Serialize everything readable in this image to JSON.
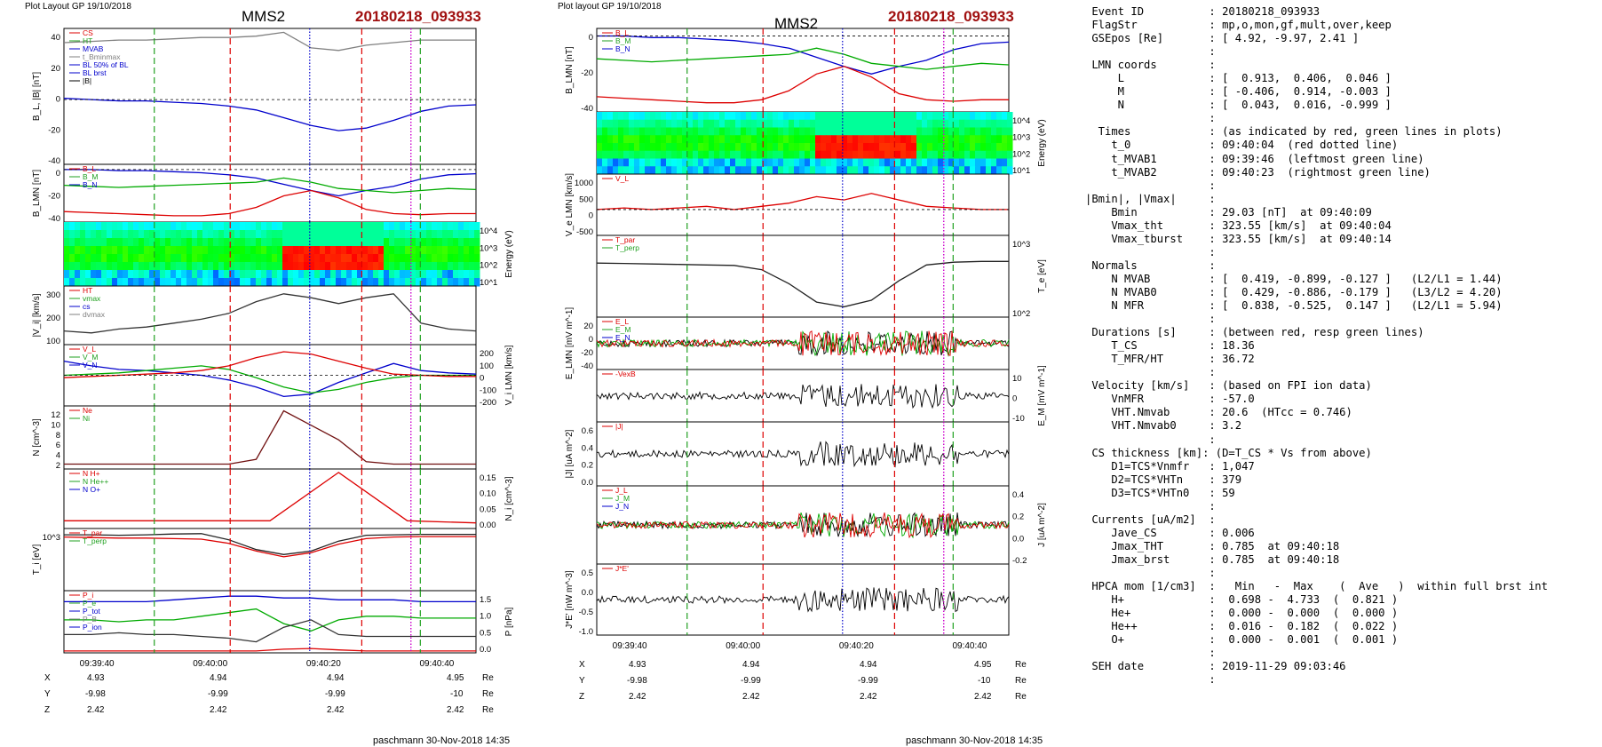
{
  "header": {
    "left_caption": "Plot Layout GP 19/10/2018",
    "mid_caption": "Plot layout GP 19/10/2018",
    "spacecraft": "MMS2",
    "event": "20180218_093933"
  },
  "footer": {
    "left_credit": "paschmann 30-Nov-2018 14:35",
    "mid_credit": "paschmann 30-Nov-2018 14:35"
  },
  "time_axis": {
    "ticks": [
      "09:39:40",
      "09:40:00",
      "09:40:20",
      "09:40:40"
    ],
    "position_rows": [
      {
        "label": "X",
        "values": [
          "4.93",
          "4.94",
          "4.94",
          "4.95"
        ],
        "unit": "Re"
      },
      {
        "label": "Y",
        "values": [
          "-9.98",
          "-9.99",
          "-9.99",
          "-10"
        ],
        "unit": "Re"
      },
      {
        "label": "Z",
        "values": [
          "2.42",
          "2.42",
          "2.42",
          "2.42"
        ],
        "unit": "Re"
      }
    ]
  },
  "event_lines": {
    "t_seconds_from": "09:39:30",
    "red_dashed": [
      23.0,
      41.2
    ],
    "green_dashed": [
      12.5,
      49.3
    ],
    "red_dotted": 34.0,
    "blue_dotted": 34.0,
    "magenta_dotted": 48.0
  },
  "chart_data": [
    {
      "panel": "left",
      "type": "line",
      "ylabel": "B_L, |B| [nT]",
      "yticks": [
        "40",
        "20",
        "0",
        "-20",
        "-40"
      ],
      "ylim": [
        -50,
        55
      ],
      "legend": [
        "CS",
        "HT",
        "MVAB",
        "t_Bminmax",
        "BL 50% of BL",
        "BL brst",
        "|B|"
      ],
      "series": [
        {
          "name": "|B|",
          "color": "#808080",
          "values": [
            44,
            45,
            46,
            46,
            47,
            48,
            48,
            49,
            52,
            40,
            38,
            42,
            44,
            46,
            46,
            46
          ]
        },
        {
          "name": "BL",
          "color": "#0000cc",
          "values": [
            1,
            0,
            -1,
            -1,
            -2,
            -3,
            -5,
            -8,
            -14,
            -20,
            -24,
            -22,
            -16,
            -9,
            -5,
            -4
          ]
        }
      ]
    },
    {
      "panel": "left",
      "type": "line",
      "ylabel": "B_LMN [nT]",
      "yticks": [
        "0",
        "-20",
        "-40"
      ],
      "ylim": [
        -50,
        5
      ],
      "legend": [
        "B_L",
        "B_M",
        "B_N"
      ],
      "series": [
        {
          "name": "B_L",
          "color": "#0000cc",
          "values": [
            0,
            0,
            -1,
            -1,
            -2,
            -3,
            -5,
            -8,
            -14,
            -20,
            -25,
            -20,
            -16,
            -9,
            -5,
            -4
          ]
        },
        {
          "name": "B_M",
          "color": "#00aa00",
          "values": [
            -15,
            -16,
            -17,
            -16,
            -15,
            -14,
            -13,
            -12,
            -8,
            -12,
            -18,
            -20,
            -22,
            -20,
            -18,
            -19
          ]
        },
        {
          "name": "B_N",
          "color": "#dd0000",
          "values": [
            -40,
            -41,
            -42,
            -43,
            -44,
            -44,
            -42,
            -36,
            -25,
            -20,
            -27,
            -38,
            -42,
            -43,
            -42,
            -42
          ]
        }
      ]
    },
    {
      "panel": "left",
      "type": "heatmap",
      "ylabel": "Energy (eV)",
      "yticks": [
        "10^4",
        "10^3",
        "10^2",
        "10^1"
      ]
    },
    {
      "panel": "left",
      "type": "line",
      "ylabel": "|V_i| [km/s]",
      "yticks": [
        "300",
        "200",
        "100"
      ],
      "ylim": [
        40,
        340
      ],
      "legend": [
        "HT",
        "vmax",
        "cs",
        "dvmax"
      ],
      "series": [
        {
          "name": "|V_i|",
          "color": "#333333",
          "values": [
            110,
            100,
            120,
            130,
            150,
            170,
            200,
            260,
            300,
            280,
            250,
            280,
            300,
            150,
            120,
            110
          ]
        }
      ]
    },
    {
      "panel": "left",
      "type": "line",
      "ylabel": "V_i LMN [km/s]",
      "yticks": [
        "200",
        "100",
        "0",
        "-100",
        "-200"
      ],
      "ylim": [
        -260,
        260
      ],
      "legend": [
        "V_L",
        "V_M",
        "V_N"
      ],
      "series": [
        {
          "name": "V_L",
          "color": "#0000cc",
          "values": [
            120,
            80,
            50,
            40,
            20,
            0,
            -40,
            -100,
            -180,
            -160,
            -60,
            20,
            100,
            40,
            20,
            10
          ]
        },
        {
          "name": "V_M",
          "color": "#00aa00",
          "values": [
            0,
            10,
            20,
            40,
            60,
            80,
            50,
            -20,
            -100,
            -150,
            -120,
            -60,
            -20,
            0,
            0,
            0
          ]
        },
        {
          "name": "V_N",
          "color": "#dd0000",
          "values": [
            -20,
            -10,
            0,
            10,
            20,
            40,
            80,
            150,
            200,
            180,
            120,
            60,
            10,
            0,
            -10,
            -10
          ]
        }
      ]
    },
    {
      "panel": "left",
      "type": "line",
      "ylabel": "N [cm^-3]",
      "yticks": [
        "12",
        "10",
        "8",
        "6",
        "4",
        "2"
      ],
      "ylim": [
        0,
        13
      ],
      "legend": [
        "Ne",
        "Ni"
      ],
      "series": [
        {
          "name": "Ni",
          "color": "#701010",
          "values": [
            1,
            1,
            1,
            1,
            1,
            1,
            1,
            2,
            12,
            9,
            6,
            1.5,
            1,
            1,
            1,
            1
          ]
        }
      ]
    },
    {
      "panel": "left",
      "type": "line",
      "ylabel": "N_i [cm^-3]",
      "yticks": [
        "0.15",
        "0.10",
        "0.05",
        "0.00"
      ],
      "ylim": [
        0,
        0.17
      ],
      "legend": [
        "N H+",
        "N He++",
        "N O+"
      ],
      "series": [
        {
          "name": "N He++",
          "color": "#dd0000",
          "values": [
            0.022,
            0.022,
            0.022,
            0.022,
            0.16,
            0.022,
            0.016
          ]
        }
      ]
    },
    {
      "panel": "left",
      "type": "line",
      "ylabel": "T_i [eV]",
      "yticks": [
        "10^3"
      ],
      "legend": [
        "T_par",
        "T_perp"
      ],
      "series": [
        {
          "name": "T_par",
          "color": "#dd0000",
          "values": [
            2500,
            2400,
            2300,
            2300,
            2200,
            2100,
            1500,
            800,
            500,
            700,
            1400,
            2200,
            2500,
            2600,
            2600,
            2600
          ]
        },
        {
          "name": "T_perp",
          "color": "#222222",
          "values": [
            3000,
            3000,
            2900,
            3000,
            3200,
            3300,
            2000,
            900,
            600,
            800,
            1800,
            2900,
            3000,
            3100,
            3100,
            3100
          ]
        }
      ]
    },
    {
      "panel": "left",
      "type": "line",
      "ylabel": "P [nPa]",
      "yticks": [
        "1.5",
        "1.0",
        "0.5",
        "0.0"
      ],
      "ylim": [
        0,
        1.7
      ],
      "legend": [
        "P_i",
        "P_e",
        "P_tot",
        "P_B",
        "P_ion"
      ],
      "series": [
        {
          "name": "P_tot",
          "color": "#0000cc",
          "values": [
            1.4,
            1.4,
            1.4,
            1.4,
            1.45,
            1.5,
            1.55,
            1.55,
            1.5,
            1.5,
            1.45,
            1.45,
            1.45,
            1.4,
            1.4,
            1.4
          ]
        },
        {
          "name": "P_B",
          "color": "#00aa00",
          "values": [
            0.9,
            0.9,
            0.85,
            0.9,
            0.9,
            1.0,
            1.1,
            1.2,
            0.8,
            0.6,
            0.9,
            1.0,
            1.0,
            0.95,
            0.95,
            0.95
          ]
        },
        {
          "name": "P_i",
          "color": "#333333",
          "values": [
            0.5,
            0.5,
            0.55,
            0.5,
            0.5,
            0.45,
            0.4,
            0.3,
            0.7,
            0.9,
            0.5,
            0.45,
            0.45,
            0.45,
            0.45,
            0.45
          ]
        },
        {
          "name": "P_e",
          "color": "#dd0000",
          "values": [
            0.05,
            0.05,
            0.05,
            0.05,
            0.05,
            0.05,
            0.05,
            0.05,
            0.1,
            0.12,
            0.08,
            0.05,
            0.05,
            0.05,
            0.05,
            0.05
          ]
        }
      ]
    },
    {
      "panel": "middle",
      "type": "line",
      "ylabel": "B_LMN [nT]",
      "yticks": [
        "0",
        "-20",
        "-40"
      ],
      "ylim": [
        -50,
        5
      ],
      "legend": [
        "B_L",
        "B_M",
        "B_N"
      ],
      "series": [
        {
          "name": "B_L",
          "color": "#0000cc",
          "values": [
            0,
            0,
            -1,
            -1,
            -2,
            -3,
            -5,
            -8,
            -14,
            -20,
            -25,
            -20,
            -16,
            -9,
            -5,
            -4
          ]
        },
        {
          "name": "B_M",
          "color": "#00aa00",
          "values": [
            -15,
            -16,
            -17,
            -16,
            -15,
            -14,
            -13,
            -12,
            -8,
            -12,
            -18,
            -20,
            -22,
            -20,
            -18,
            -19
          ]
        },
        {
          "name": "B_N",
          "color": "#dd0000",
          "values": [
            -40,
            -41,
            -42,
            -43,
            -44,
            -44,
            -42,
            -36,
            -25,
            -20,
            -27,
            -38,
            -42,
            -43,
            -42,
            -42
          ]
        }
      ]
    },
    {
      "panel": "middle",
      "type": "heatmap",
      "ylabel": "Energy (eV)",
      "yticks": [
        "10^4",
        "10^3",
        "10^2",
        "10^1"
      ]
    },
    {
      "panel": "middle",
      "type": "line",
      "ylabel": "V_e LMN [km/s]",
      "yticks": [
        "1000",
        "500",
        "0",
        "-500"
      ],
      "ylim": [
        -800,
        1100
      ],
      "legend": [
        "V_L"
      ],
      "series": [
        {
          "name": "V_e",
          "color": "#dd0000",
          "values": [
            0,
            50,
            0,
            50,
            100,
            0,
            100,
            200,
            400,
            300,
            500,
            300,
            100,
            50,
            0,
            0
          ]
        }
      ]
    },
    {
      "panel": "middle",
      "type": "line",
      "ylabel": "T_e [eV]",
      "yticks": [
        "10^3",
        "10^2"
      ],
      "legend": [
        "T_par",
        "T_perp"
      ],
      "series": [
        {
          "name": "T_e",
          "color": "#222222",
          "values": [
            900,
            880,
            850,
            830,
            800,
            780,
            600,
            250,
            80,
            60,
            90,
            300,
            800,
            950,
            1000,
            1000
          ]
        }
      ]
    },
    {
      "panel": "middle",
      "type": "line",
      "ylabel": "E_LMN [mV m^-1]",
      "yticks": [
        "20",
        "0",
        "-20",
        "-40"
      ],
      "ylim": [
        -45,
        30
      ],
      "legend": [
        "E_L",
        "E_M",
        "E_N"
      ],
      "series": []
    },
    {
      "panel": "middle",
      "type": "line",
      "ylabel": "E_M [mV m^-1]",
      "yticks": [
        "10",
        "0",
        "-10"
      ],
      "legend": [
        "-VexB"
      ],
      "series": []
    },
    {
      "panel": "middle",
      "type": "line",
      "ylabel": "|J| [uA m^-2]",
      "yticks": [
        "0.6",
        "0.4",
        "0.2",
        "0.0"
      ],
      "ylim": [
        0,
        0.8
      ],
      "legend": [
        "|J|"
      ],
      "series": []
    },
    {
      "panel": "middle",
      "type": "line",
      "ylabel": "J [uA m^-2]",
      "yticks": [
        "0.4",
        "0.2",
        "0.0",
        "-0.2"
      ],
      "ylim": [
        -0.35,
        0.5
      ],
      "legend": [
        "J_L",
        "J_M",
        "J_N"
      ],
      "series": []
    },
    {
      "panel": "middle",
      "type": "line",
      "ylabel": "J*E' [nW m^-3]",
      "yticks": [
        "0.5",
        "0.0",
        "-0.5",
        "-1.0"
      ],
      "ylim": [
        -1.2,
        0.8
      ],
      "legend": [
        "J*E'"
      ],
      "series": []
    }
  ],
  "info_text": [
    " Event ID          : 20180218_093933",
    " FlagStr           : mp,o,mon,gf,mult,over,keep",
    " GSEpos [Re]       : [ 4.92, -9.97, 2.41 ]",
    "                   :",
    " LMN coords        :",
    "     L             : [  0.913,  0.406,  0.046 ]",
    "     M             : [ -0.406,  0.914, -0.003 ]",
    "     N             : [  0.043,  0.016, -0.999 ]",
    "                   :",
    "  Times            : (as indicated by red, green lines in plots)",
    "    t_0            : 09:40:04  (red dotted line)",
    "    t_MVAB1        : 09:39:46  (leftmost green line)",
    "    t_MVAB2        : 09:40:23  (rightmost green line)",
    "                   :",
    "|Bmin|, |Vmax|     :",
    "    Bmin           : 29.03 [nT]  at 09:40:09",
    "    Vmax_tht       : 323.55 [km/s]  at 09:40:04",
    "    Vmax_tburst    : 323.55 [km/s]  at 09:40:14",
    "                   :",
    " Normals           :",
    "    N MVAB         : [  0.419, -0.899, -0.127 ]   (L2/L1 = 1.44)",
    "    N MVAB0        : [  0.429, -0.886, -0.179 ]   (L3/L2 = 4.20)",
    "    N MFR          : [  0.838, -0.525,  0.147 ]   (L2/L1 = 5.94)",
    "                   :",
    " Durations [s]     : (between red, resp green lines)",
    "    T_CS           : 18.36",
    "    T_MFR/HT       : 36.72",
    "                   :",
    " Velocity [km/s]   : (based on FPI ion data)",
    "    VnMFR          : -57.0",
    "    VHT.Nmvab      : 20.6  (HTcc = 0.746)",
    "    VHT.Nmvab0     : 3.2",
    "                   :",
    " CS thickness [km]: (D=T_CS * Vs from above)",
    "    D1=TCS*Vnmfr   : 1,047",
    "    D2=TCS*VHTn    : 379",
    "    D3=TCS*VHTn0   : 59",
    "                   :",
    " Currents [uA/m2]  :",
    "    Jave_CS        : 0.006",
    "    Jmax_THT       : 0.785  at 09:40:18",
    "    Jmax_brst      : 0.785  at 09:40:18",
    "                   :",
    " HPCA mom [1/cm3]  :   Min   -  Max    (  Ave   )  within full brst int",
    "    H+             :  0.698 -  4.733  (  0.821 )",
    "    He+            :  0.000 -  0.000  (  0.000 )",
    "    He++           :  0.016 -  0.182  (  0.022 )",
    "    O+             :  0.000 -  0.001  (  0.001 )",
    "                   :",
    " SEH date          : 2019-11-29 09:03:46",
    "                   :"
  ]
}
